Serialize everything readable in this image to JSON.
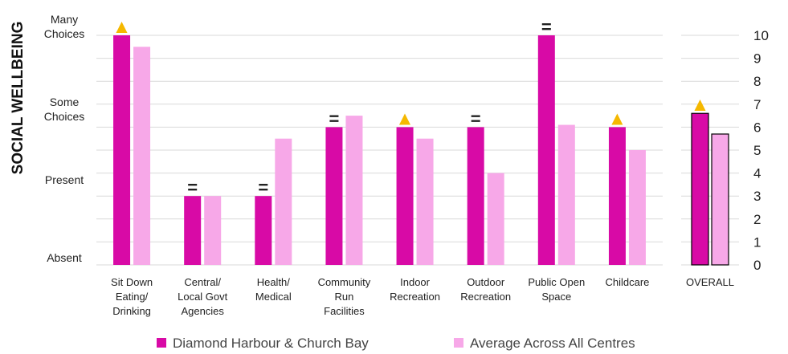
{
  "chart_data": {
    "type": "bar",
    "ylabel": "SOCIAL WELLBEING",
    "categories": [
      "Sit Down\nEating/\nDrinking",
      "Central/\nLocal Govt\nAgencies",
      "Health/\nMedical",
      "Community\nRun\nFacilities",
      "Indoor\nRecreation",
      "Outdoor\nRecreation",
      "Public Open\nSpace",
      "Childcare",
      "OVERALL"
    ],
    "series": [
      {
        "name": "Diamond Harbour & Church Bay",
        "color": "#d80aa6",
        "values": [
          10,
          3,
          3,
          6,
          6,
          6,
          10,
          6,
          6.6
        ]
      },
      {
        "name": "Average Across All Centres",
        "color": "#f7a8e8",
        "values": [
          9.5,
          3,
          5.5,
          6.5,
          5.5,
          4,
          6.1,
          5,
          5.7
        ]
      }
    ],
    "markers": [
      "▲",
      "=",
      "=",
      "=",
      "▲",
      "=",
      "=",
      "▲",
      "▲"
    ],
    "marker_color": "#f5b800",
    "ylim": [
      0,
      10
    ],
    "yticks": [
      0,
      1,
      2,
      3,
      4,
      5,
      6,
      7,
      8,
      9,
      10
    ],
    "left_ticks": [
      {
        "value": 10.4,
        "label": "Many\nChoices"
      },
      {
        "value": 6.8,
        "label": "Some\nChoices"
      },
      {
        "value": 3.7,
        "label": "Present"
      },
      {
        "value": 0.3,
        "label": "Absent"
      }
    ],
    "grid": true
  }
}
